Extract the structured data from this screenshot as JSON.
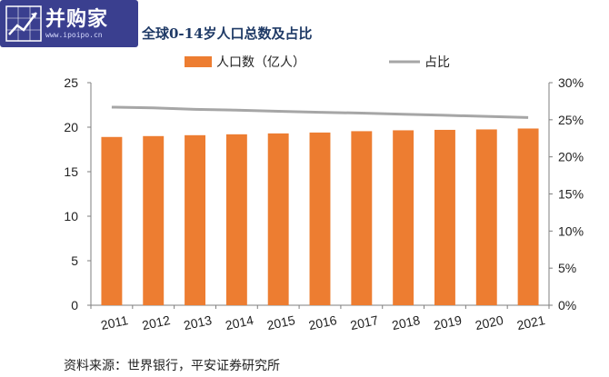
{
  "logo": {
    "brand": "并购家",
    "url": "www.ipoipo.cn",
    "icon": "growth-chart-icon"
  },
  "caption": {
    "title": "全球0-14岁人口总数及占比",
    "source": "资料来源：世界银行，平安证券研究所"
  },
  "chart_data": {
    "type": "bar",
    "title": "全球0-14岁人口总数及占比",
    "categories": [
      "2011",
      "2012",
      "2013",
      "2014",
      "2015",
      "2016",
      "2017",
      "2018",
      "2019",
      "2020",
      "2021"
    ],
    "series": [
      {
        "name": "人口数（亿人）",
        "type": "bar",
        "axis": "left",
        "color": "#ed7d31",
        "values": [
          18.9,
          19.0,
          19.1,
          19.2,
          19.3,
          19.4,
          19.55,
          19.65,
          19.7,
          19.75,
          19.85
        ]
      },
      {
        "name": "占比",
        "type": "line",
        "axis": "right",
        "color": "#a6a6a6",
        "values": [
          26.7,
          26.6,
          26.4,
          26.3,
          26.15,
          26.0,
          25.9,
          25.75,
          25.6,
          25.45,
          25.3
        ]
      }
    ],
    "y_left": {
      "range": [
        0,
        25
      ],
      "ticks": [
        "0",
        "5",
        "10",
        "15",
        "20",
        "25"
      ]
    },
    "y_right": {
      "range": [
        0,
        30
      ],
      "ticks": [
        "0%",
        "5%",
        "10%",
        "15%",
        "20%",
        "25%",
        "30%"
      ]
    },
    "grid": false,
    "legend_position": "top"
  }
}
